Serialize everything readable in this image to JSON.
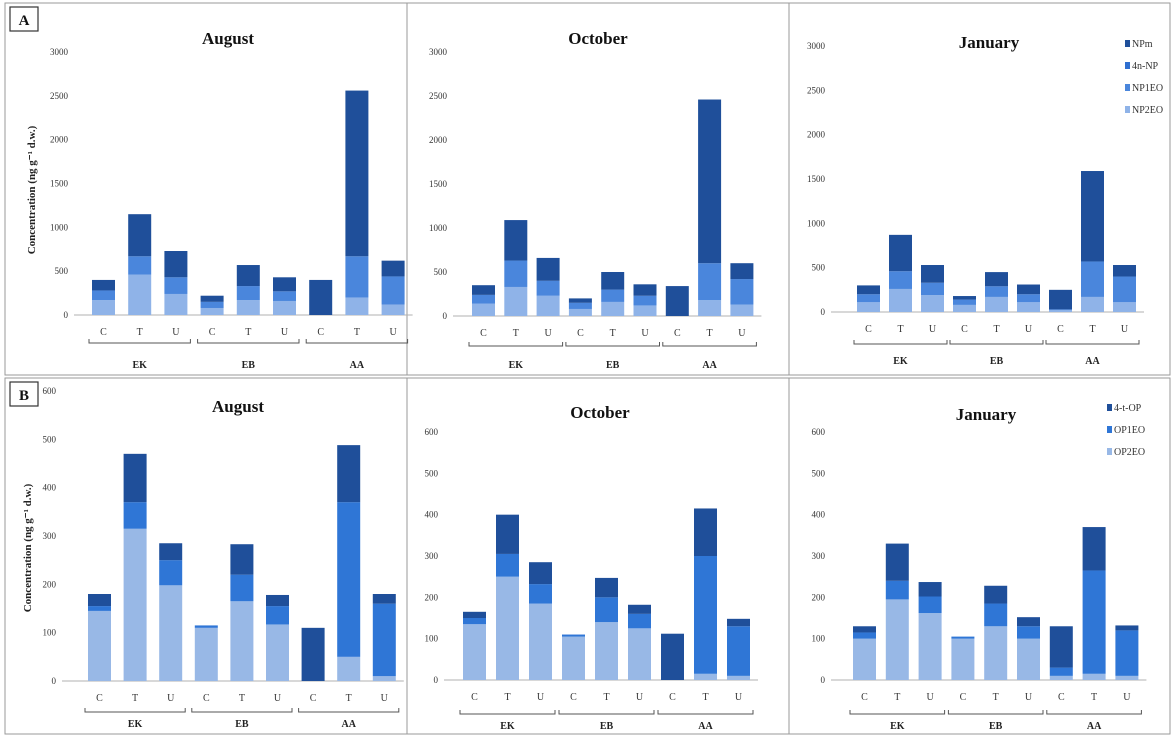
{
  "colors": {
    "NPm": "#1f4f9a",
    "4n-NP": "#2f6fd0",
    "NP1EO": "#4a86dc",
    "NP2EO": "#8fb3e8",
    "4-t-OP": "#1f4f9a",
    "OP1EO": "#2f76d6",
    "OP2EO": "#98b8e6"
  },
  "panel_labels": [
    "A",
    "B"
  ],
  "y_axis_label": "Concentration (ng g⁻¹ d.w.)",
  "chart_data": [
    {
      "type": "bar",
      "stacked": true,
      "title": "August",
      "row": "A",
      "categories": [
        "C",
        "T",
        "U",
        "C",
        "T",
        "U",
        "C",
        "T",
        "U"
      ],
      "groups": [
        "EK",
        "EB",
        "AA"
      ],
      "ylim": [
        0,
        3000
      ],
      "yticks": [
        "0",
        "500",
        "1000",
        "1500",
        "2000",
        "2500",
        "3000"
      ],
      "legend": [],
      "series": [
        {
          "name": "NP2EO",
          "values": [
            170,
            460,
            240,
            80,
            170,
            160,
            0,
            200,
            120
          ]
        },
        {
          "name": "NP1EO",
          "values": [
            110,
            210,
            190,
            70,
            160,
            110,
            0,
            470,
            320
          ]
        },
        {
          "name": "NPm",
          "values": [
            120,
            480,
            300,
            70,
            240,
            160,
            400,
            1890,
            180
          ]
        }
      ]
    },
    {
      "type": "bar",
      "stacked": true,
      "title": "October",
      "row": "A",
      "categories": [
        "C",
        "T",
        "U",
        "C",
        "T",
        "U",
        "C",
        "T",
        "U"
      ],
      "groups": [
        "EK",
        "EB",
        "AA"
      ],
      "ylim": [
        0,
        3000
      ],
      "yticks": [
        "0",
        "500",
        "1000",
        "1500",
        "2000",
        "2500",
        "3000"
      ],
      "legend": [],
      "series": [
        {
          "name": "NP2EO",
          "values": [
            140,
            330,
            230,
            80,
            160,
            120,
            0,
            180,
            130
          ]
        },
        {
          "name": "NP1EO",
          "values": [
            100,
            300,
            170,
            70,
            140,
            110,
            0,
            420,
            290
          ]
        },
        {
          "name": "NPm",
          "values": [
            110,
            460,
            260,
            50,
            200,
            130,
            340,
            1860,
            180
          ]
        }
      ]
    },
    {
      "type": "bar",
      "stacked": true,
      "title": "January",
      "row": "A",
      "categories": [
        "C",
        "T",
        "U",
        "C",
        "T",
        "U",
        "C",
        "T",
        "U"
      ],
      "groups": [
        "EK",
        "EB",
        "AA"
      ],
      "ylim": [
        0,
        3000
      ],
      "yticks": [
        "0",
        "500",
        "1000",
        "1500",
        "2000",
        "2500",
        "3000"
      ],
      "legend": [
        "NPm",
        "4n-NP",
        "NP1EO",
        "NP2EO"
      ],
      "series": [
        {
          "name": "NP2EO",
          "values": [
            110,
            260,
            190,
            80,
            170,
            110,
            20,
            170,
            110
          ]
        },
        {
          "name": "NP1EO",
          "values": [
            90,
            200,
            140,
            60,
            120,
            90,
            10,
            400,
            290
          ]
        },
        {
          "name": "NPm",
          "values": [
            100,
            410,
            200,
            40,
            160,
            110,
            220,
            1020,
            130
          ]
        }
      ]
    },
    {
      "type": "bar",
      "stacked": true,
      "title": "August",
      "row": "B",
      "categories": [
        "C",
        "T",
        "U",
        "C",
        "T",
        "U",
        "C",
        "T",
        "U"
      ],
      "groups": [
        "EK",
        "EB",
        "AA"
      ],
      "ylim": [
        0,
        600
      ],
      "yticks": [
        "0",
        "100",
        "200",
        "300",
        "400",
        "500",
        "600"
      ],
      "legend": [],
      "series": [
        {
          "name": "OP2EO",
          "values": [
            145,
            315,
            198,
            110,
            165,
            117,
            0,
            50,
            10
          ]
        },
        {
          "name": "OP1EO",
          "values": [
            10,
            55,
            52,
            5,
            55,
            38,
            0,
            320,
            150
          ]
        },
        {
          "name": "4-t-OP",
          "values": [
            25,
            100,
            35,
            0,
            63,
            23,
            110,
            118,
            20
          ]
        }
      ]
    },
    {
      "type": "bar",
      "stacked": true,
      "title": "October",
      "row": "B",
      "categories": [
        "C",
        "T",
        "U",
        "C",
        "T",
        "U",
        "C",
        "T",
        "U"
      ],
      "groups": [
        "EK",
        "EB",
        "AA"
      ],
      "ylim": [
        0,
        600
      ],
      "yticks": [
        "0",
        "100",
        "200",
        "300",
        "400",
        "500",
        "600"
      ],
      "legend": [],
      "series": [
        {
          "name": "OP2EO",
          "values": [
            135,
            250,
            185,
            105,
            140,
            125,
            0,
            15,
            10
          ]
        },
        {
          "name": "OP1EO",
          "values": [
            15,
            55,
            47,
            5,
            60,
            35,
            0,
            285,
            120
          ]
        },
        {
          "name": "4-t-OP",
          "values": [
            15,
            95,
            53,
            0,
            47,
            22,
            112,
            115,
            18
          ]
        }
      ]
    },
    {
      "type": "bar",
      "stacked": true,
      "title": "January",
      "row": "B",
      "categories": [
        "C",
        "T",
        "U",
        "C",
        "T",
        "U",
        "C",
        "T",
        "U"
      ],
      "groups": [
        "EK",
        "EB",
        "AA"
      ],
      "ylim": [
        0,
        600
      ],
      "yticks": [
        "0",
        "100",
        "200",
        "300",
        "400",
        "500",
        "600"
      ],
      "legend": [
        "4-t-OP",
        "OP1EO",
        "OP2EO"
      ],
      "series": [
        {
          "name": "OP2EO",
          "values": [
            100,
            195,
            162,
            100,
            130,
            100,
            10,
            15,
            10
          ]
        },
        {
          "name": "OP1EO",
          "values": [
            15,
            45,
            40,
            5,
            55,
            30,
            20,
            250,
            110
          ]
        },
        {
          "name": "4-t-OP",
          "values": [
            15,
            90,
            35,
            0,
            43,
            22,
            100,
            105,
            12
          ]
        }
      ]
    }
  ]
}
